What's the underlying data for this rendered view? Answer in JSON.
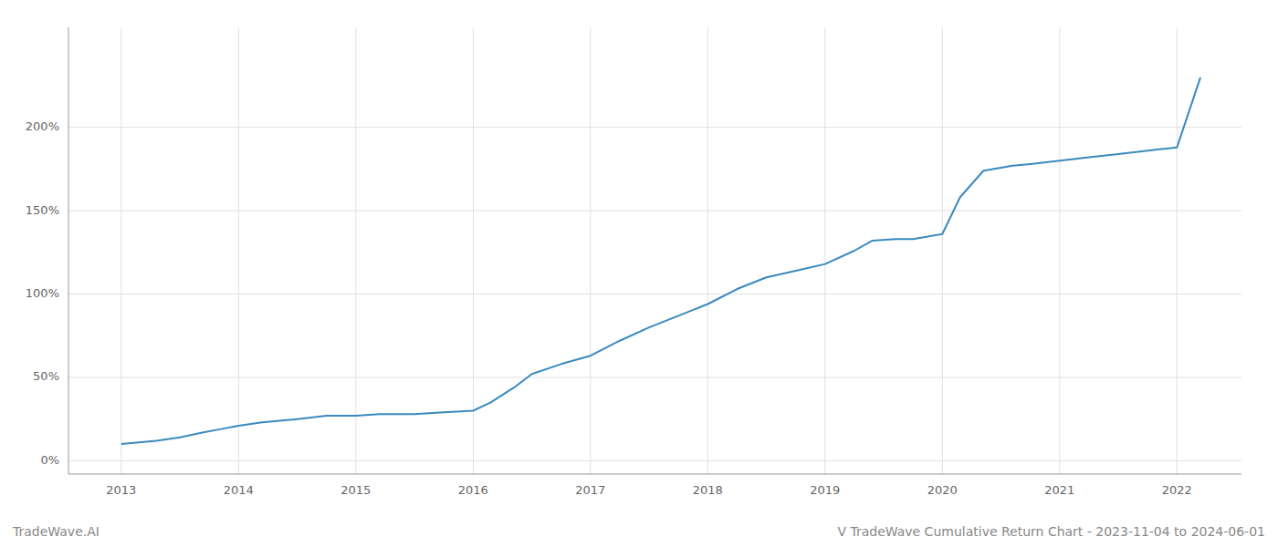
{
  "chart_data": {
    "type": "line",
    "title": "V TradeWave Cumulative Return Chart - 2023-11-04 to 2024-06-01",
    "annotations": [
      "TradeWave.AI"
    ],
    "x": [
      2013.0,
      2013.15,
      2013.3,
      2013.5,
      2013.7,
      2013.85,
      2014.0,
      2014.2,
      2014.5,
      2014.75,
      2015.0,
      2015.2,
      2015.5,
      2015.75,
      2016.0,
      2016.15,
      2016.35,
      2016.5,
      2016.75,
      2017.0,
      2017.25,
      2017.5,
      2017.75,
      2018.0,
      2018.25,
      2018.5,
      2018.75,
      2019.0,
      2019.25,
      2019.4,
      2019.6,
      2019.75,
      2020.0,
      2020.15,
      2020.35,
      2020.6,
      2020.75,
      2021.0,
      2021.25,
      2021.5,
      2021.75,
      2022.0,
      2022.2
    ],
    "values": [
      10,
      11,
      12,
      14,
      17,
      19,
      21,
      23,
      25,
      27,
      27,
      28,
      28,
      29,
      30,
      35,
      44,
      52,
      58,
      63,
      72,
      80,
      87,
      94,
      103,
      110,
      114,
      118,
      126,
      132,
      133,
      133,
      136,
      158,
      174,
      177,
      178,
      180,
      182,
      184,
      186,
      188,
      230
    ],
    "color": "#3a8abf",
    "xlim": [
      2012.55,
      2022.55
    ],
    "xticks": [
      2013,
      2014,
      2015,
      2016,
      2017,
      2018,
      2019,
      2020,
      2021,
      2022
    ],
    "ylim": [
      -8,
      260
    ],
    "yticks": [
      {
        "value": 0,
        "label": "0%"
      },
      {
        "value": 50,
        "label": "50%"
      },
      {
        "value": 100,
        "label": "100%"
      },
      {
        "value": 150,
        "label": "150%"
      },
      {
        "value": 200,
        "label": "200%"
      }
    ],
    "grid": true
  }
}
